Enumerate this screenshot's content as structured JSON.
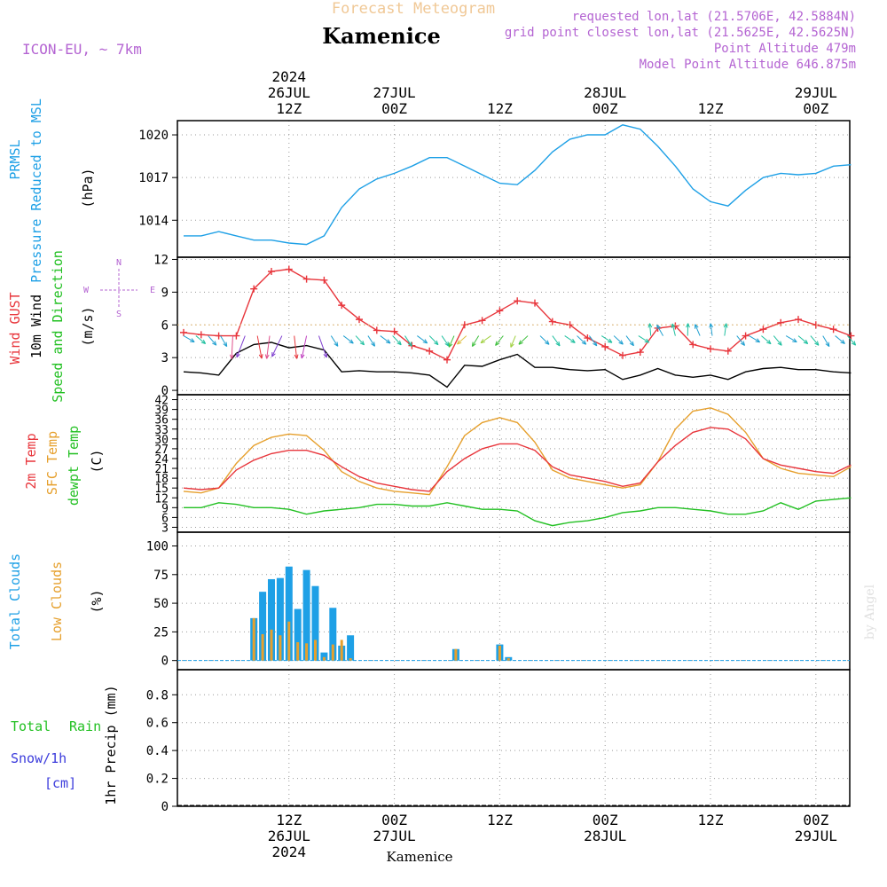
{
  "header": {
    "super_title": "Forecast Meteogram",
    "location": "Kamenice",
    "model": "ICON-EU, ~ 7km",
    "requested": "requested lon,lat (21.5706E, 42.5884N)",
    "gridpoint": "grid point closest lon,lat (21.5625E, 42.5625N)",
    "point_alt": "Point Altitude 479m",
    "model_alt": "Model Point Altitude 646.875m",
    "credit": "by Angel",
    "footer_location": "Kamenice"
  },
  "colors": {
    "pressure": "#1ea0e6",
    "gust": "#e8363c",
    "wind": "#000000",
    "temp": "#e8363c",
    "sfc_temp": "#e6a02d",
    "dewpt": "#22c022",
    "total_cloud": "#1ea0e6",
    "low_cloud": "#e6a02d",
    "rain": "#22c022",
    "snow": "#3c3cdc",
    "meta": "#b464d2",
    "title_faint": "#f0c896"
  },
  "time_axis": {
    "year": "2024",
    "top_labels": [
      {
        "t": 12,
        "line1": "2024",
        "line2": "26JUL",
        "line3": "12Z"
      },
      {
        "t": 24,
        "line1": "",
        "line2": "27JUL",
        "line3": "00Z"
      },
      {
        "t": 36,
        "line1": "",
        "line2": "",
        "line3": "12Z"
      },
      {
        "t": 48,
        "line1": "",
        "line2": "28JUL",
        "line3": "00Z"
      },
      {
        "t": 60,
        "line1": "",
        "line2": "",
        "line3": "12Z"
      },
      {
        "t": 72,
        "line1": "",
        "line2": "29JUL",
        "line3": "00Z"
      }
    ],
    "bottom_labels": [
      {
        "t": 12,
        "line1": "12Z",
        "line2": "26JUL",
        "line3": "2024"
      },
      {
        "t": 24,
        "line1": "00Z",
        "line2": "27JUL",
        "line3": ""
      },
      {
        "t": 36,
        "line1": "12Z",
        "line2": "",
        "line3": ""
      },
      {
        "t": 48,
        "line1": "00Z",
        "line2": "28JUL",
        "line3": ""
      },
      {
        "t": 60,
        "line1": "12Z",
        "line2": "",
        "line3": ""
      },
      {
        "t": 72,
        "line1": "00Z",
        "line2": "29JUL",
        "line3": ""
      }
    ]
  },
  "compass": {
    "n": "N",
    "s": "S",
    "e": "E",
    "w": "W"
  },
  "panels": {
    "pressure": {
      "label_a": "PRMSL",
      "label_b": "Pressure Reduced to MSL",
      "unit": "(hPa)",
      "ticks": [
        "1020",
        "1017",
        "1014"
      ]
    },
    "wind": {
      "label_gust": "Wind GUST",
      "label_wind": "10m Wind",
      "label_dir": "Speed and Direction",
      "unit": "(m/s)",
      "ticks": [
        "12",
        "9",
        "6",
        "3",
        "0"
      ]
    },
    "temp": {
      "label_t2m": "2m Temp",
      "label_sfc": "SFC Temp",
      "label_dew": "dewpt Temp",
      "unit": "(C)",
      "ticks": [
        "42",
        "39",
        "36",
        "33",
        "30",
        "27",
        "24",
        "21",
        "18",
        "15",
        "12",
        "9",
        "6",
        "3"
      ]
    },
    "clouds": {
      "label_total": "Total Clouds",
      "label_low": "Low Clouds",
      "unit": "(%)",
      "ticks": [
        "100",
        "75",
        "50",
        "25",
        "0"
      ]
    },
    "precip": {
      "label_total": "Total",
      "label_rain": "Rain",
      "label_snow": "Snow/1h",
      "label_cm": "[cm]",
      "axis_label": "1hr Precip (mm)",
      "ticks": [
        "0.8",
        "0.6",
        "0.4",
        "0.2",
        "0"
      ]
    }
  },
  "chart_data": [
    {
      "type": "line",
      "ylabel": "PRMSL Pressure Reduced to MSL (hPa)",
      "ylim": [
        1011.4,
        1021
      ],
      "x_hours": [
        0,
        2,
        4,
        6,
        8,
        10,
        12,
        14,
        16,
        18,
        20,
        22,
        24,
        26,
        28,
        30,
        32,
        34,
        36,
        38,
        40,
        42,
        44,
        46,
        48,
        50,
        52,
        54,
        56,
        58,
        60,
        62,
        64,
        66,
        68,
        70,
        72,
        74,
        76
      ],
      "series": [
        {
          "values": [
            1012.9,
            1012.9,
            1013.2,
            1012.9,
            1012.6,
            1012.6,
            1012.4,
            1012.3,
            1012.9,
            1014.9,
            1016.2,
            1016.9,
            1017.3,
            1017.8,
            1018.4,
            1018.4,
            1017.8,
            1017.2,
            1016.6,
            1016.5,
            1017.5,
            1018.8,
            1019.7,
            1020.0,
            1020.0,
            1020.7,
            1020.4,
            1019.2,
            1017.8,
            1016.2,
            1015.3,
            1015.0,
            1016.1,
            1017.0,
            1017.3,
            1017.2,
            1017.3,
            1017.8,
            1017.9
          ]
        }
      ]
    },
    {
      "type": "line",
      "ylabel": "Wind GUST / 10m Wind (m/s)",
      "ylim": [
        0,
        12
      ],
      "x_hours": [
        0,
        2,
        4,
        6,
        8,
        10,
        12,
        14,
        16,
        18,
        20,
        22,
        24,
        26,
        28,
        30,
        32,
        34,
        36,
        38,
        40,
        42,
        44,
        46,
        48,
        50,
        52,
        54,
        56,
        58,
        60,
        62,
        64,
        66,
        68,
        70,
        72,
        74,
        76
      ],
      "series": [
        {
          "name": "Wind GUST",
          "values": [
            5.3,
            5.1,
            5.0,
            5.0,
            9.3,
            10.9,
            11.1,
            10.2,
            10.1,
            7.8,
            6.5,
            5.5,
            5.4,
            4.1,
            3.6,
            2.8,
            6.0,
            6.4,
            7.3,
            8.2,
            8.0,
            6.3,
            6.0,
            4.8,
            4.0,
            3.2,
            3.5,
            5.7,
            5.9,
            4.2,
            3.8,
            3.6,
            5.0,
            5.6,
            6.2,
            6.5,
            6.0,
            5.6,
            5.0
          ]
        },
        {
          "name": "10m Wind",
          "values": [
            1.7,
            1.6,
            1.4,
            3.4,
            4.2,
            4.4,
            3.9,
            4.1,
            3.7,
            1.7,
            1.8,
            1.7,
            1.7,
            1.6,
            1.4,
            0.3,
            2.3,
            2.2,
            2.8,
            3.3,
            2.1,
            2.1,
            1.9,
            1.8,
            1.9,
            1.0,
            1.4,
            2.0,
            1.4,
            1.2,
            1.4,
            1.0,
            1.7,
            2.0,
            2.1,
            1.9,
            1.9,
            1.7,
            1.6
          ]
        }
      ]
    },
    {
      "type": "line",
      "ylabel": "Temperature (C)",
      "ylim": [
        3,
        42
      ],
      "x_hours": [
        0,
        2,
        4,
        6,
        8,
        10,
        12,
        14,
        16,
        18,
        20,
        22,
        24,
        26,
        28,
        30,
        32,
        34,
        36,
        38,
        40,
        42,
        44,
        46,
        48,
        50,
        52,
        54,
        56,
        58,
        60,
        62,
        64,
        66,
        68,
        70,
        72,
        74,
        76
      ],
      "series": [
        {
          "name": "2m Temp",
          "values": [
            15.0,
            14.5,
            15.0,
            20.5,
            23.5,
            25.5,
            26.5,
            26.5,
            25.0,
            21.5,
            18.5,
            16.5,
            15.5,
            14.5,
            14.0,
            20.0,
            24.0,
            27.0,
            28.5,
            28.5,
            26.5,
            21.5,
            19.0,
            18.0,
            17.0,
            15.5,
            16.5,
            23.0,
            28.0,
            32.0,
            33.5,
            33.0,
            30.0,
            24.0,
            22.0,
            21.0,
            20.0,
            19.5,
            22.0
          ]
        },
        {
          "name": "SFC Temp",
          "values": [
            14.0,
            13.5,
            15.0,
            22.5,
            28.0,
            30.5,
            31.5,
            31.0,
            26.5,
            20.0,
            17.0,
            15.0,
            14.0,
            13.5,
            13.0,
            21.5,
            31.0,
            35.0,
            36.5,
            35.0,
            29.0,
            20.5,
            18.0,
            17.0,
            16.0,
            15.0,
            16.0,
            23.0,
            33.0,
            38.5,
            39.5,
            37.5,
            32.0,
            24.0,
            21.0,
            19.5,
            19.0,
            18.5,
            21.5
          ]
        },
        {
          "name": "dewpt Temp",
          "values": [
            9.0,
            9.0,
            10.5,
            10.0,
            9.0,
            9.0,
            8.5,
            7.0,
            8.0,
            8.5,
            9.0,
            10.0,
            10.0,
            9.5,
            9.5,
            10.5,
            9.5,
            8.5,
            8.5,
            8.0,
            5.0,
            3.5,
            4.5,
            5.0,
            6.0,
            7.5,
            8.0,
            9.0,
            9.0,
            8.5,
            8.0,
            7.0,
            7.0,
            8.0,
            10.5,
            8.5,
            11.0,
            11.5,
            12.0
          ]
        }
      ]
    },
    {
      "type": "bar",
      "ylabel": "Clouds (%)",
      "ylim": [
        0,
        100
      ],
      "x_hours": [
        8,
        9,
        10,
        11,
        12,
        13,
        14,
        15,
        16,
        17,
        18,
        19,
        31,
        36,
        37
      ],
      "series": [
        {
          "name": "Total Clouds",
          "values": [
            37,
            60,
            71,
            72,
            82,
            45,
            79,
            65,
            7,
            46,
            13,
            22,
            10,
            14,
            3
          ]
        },
        {
          "name": "Low Clouds",
          "values": [
            37,
            23,
            27,
            22,
            34,
            16,
            15,
            18,
            3,
            14,
            18,
            2,
            10,
            13,
            2
          ]
        }
      ]
    },
    {
      "type": "bar",
      "ylabel": "1hr Precip (mm)",
      "ylim": [
        0,
        0.98
      ],
      "x_hours": [],
      "series": [
        {
          "name": "Total",
          "values": []
        },
        {
          "name": "Rain",
          "values": []
        },
        {
          "name": "Snow/1h",
          "values": []
        }
      ]
    }
  ]
}
